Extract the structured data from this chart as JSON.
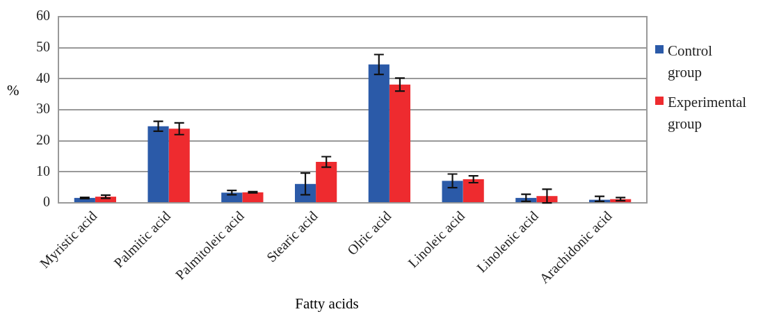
{
  "chart_data": {
    "type": "bar",
    "xlabel": "Fatty acids",
    "ylabel": "%",
    "categories": [
      "Myristic acid",
      "Palmitic acid",
      "Palmitoleic acid",
      "Stearic acid",
      "Olric acid",
      "Linoleic acid",
      "Linolenic acid",
      "Arachidonic acid"
    ],
    "series": [
      {
        "name": "Control group",
        "color": "#2b5aa8",
        "values": [
          1.6,
          24.7,
          3.3,
          6.1,
          44.6,
          7.1,
          1.6,
          1.0
        ],
        "errors": [
          0.2,
          1.6,
          0.7,
          3.5,
          3.2,
          2.2,
          [
            0.5,
            2.8
          ],
          [
            0.5,
            2.1
          ]
        ]
      },
      {
        "name": "Experimental group",
        "color": "#ee2b2f",
        "values": [
          2.0,
          23.9,
          3.4,
          13.2,
          38.1,
          7.6,
          2.2,
          1.2
        ],
        "errors": [
          0.5,
          1.9,
          0.2,
          1.7,
          2.1,
          1.1,
          2.2,
          0.5
        ]
      }
    ],
    "ylim": [
      0,
      60
    ],
    "yticks": [
      0,
      10,
      20,
      30,
      40,
      50,
      60
    ],
    "grid": "y",
    "legend": "right"
  }
}
